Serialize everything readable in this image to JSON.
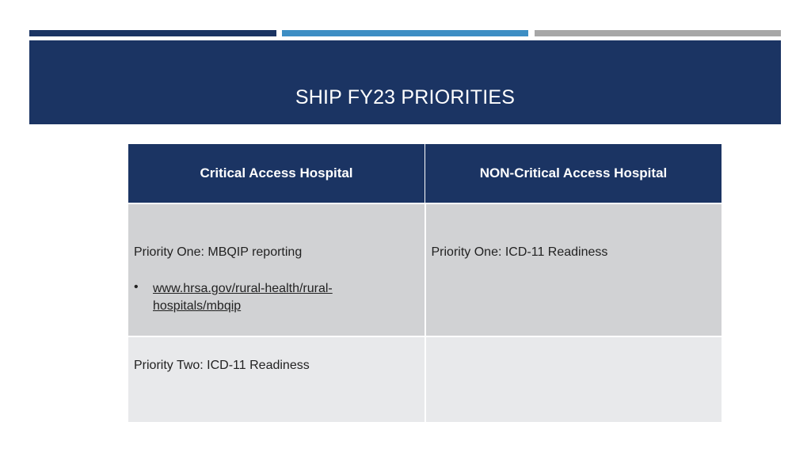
{
  "slide": {
    "title": "SHIP FY23 PRIORITIES",
    "accent_colors": [
      "#1b3463",
      "#3d8ec4",
      "#a7a7a7"
    ]
  },
  "table": {
    "headers": [
      "Critical Access Hospital",
      "NON-Critical Access Hospital"
    ],
    "rows": [
      {
        "left": "Priority One: MBQIP reporting",
        "left_bullet": "•",
        "left_link_line1": "www.hrsa.gov/rural-health/rural-",
        "left_link_line2": "hospitals/mbqip",
        "right": "Priority One: ICD-11 Readiness"
      },
      {
        "left": "Priority Two:  ICD-11 Readiness",
        "right": ""
      }
    ]
  }
}
